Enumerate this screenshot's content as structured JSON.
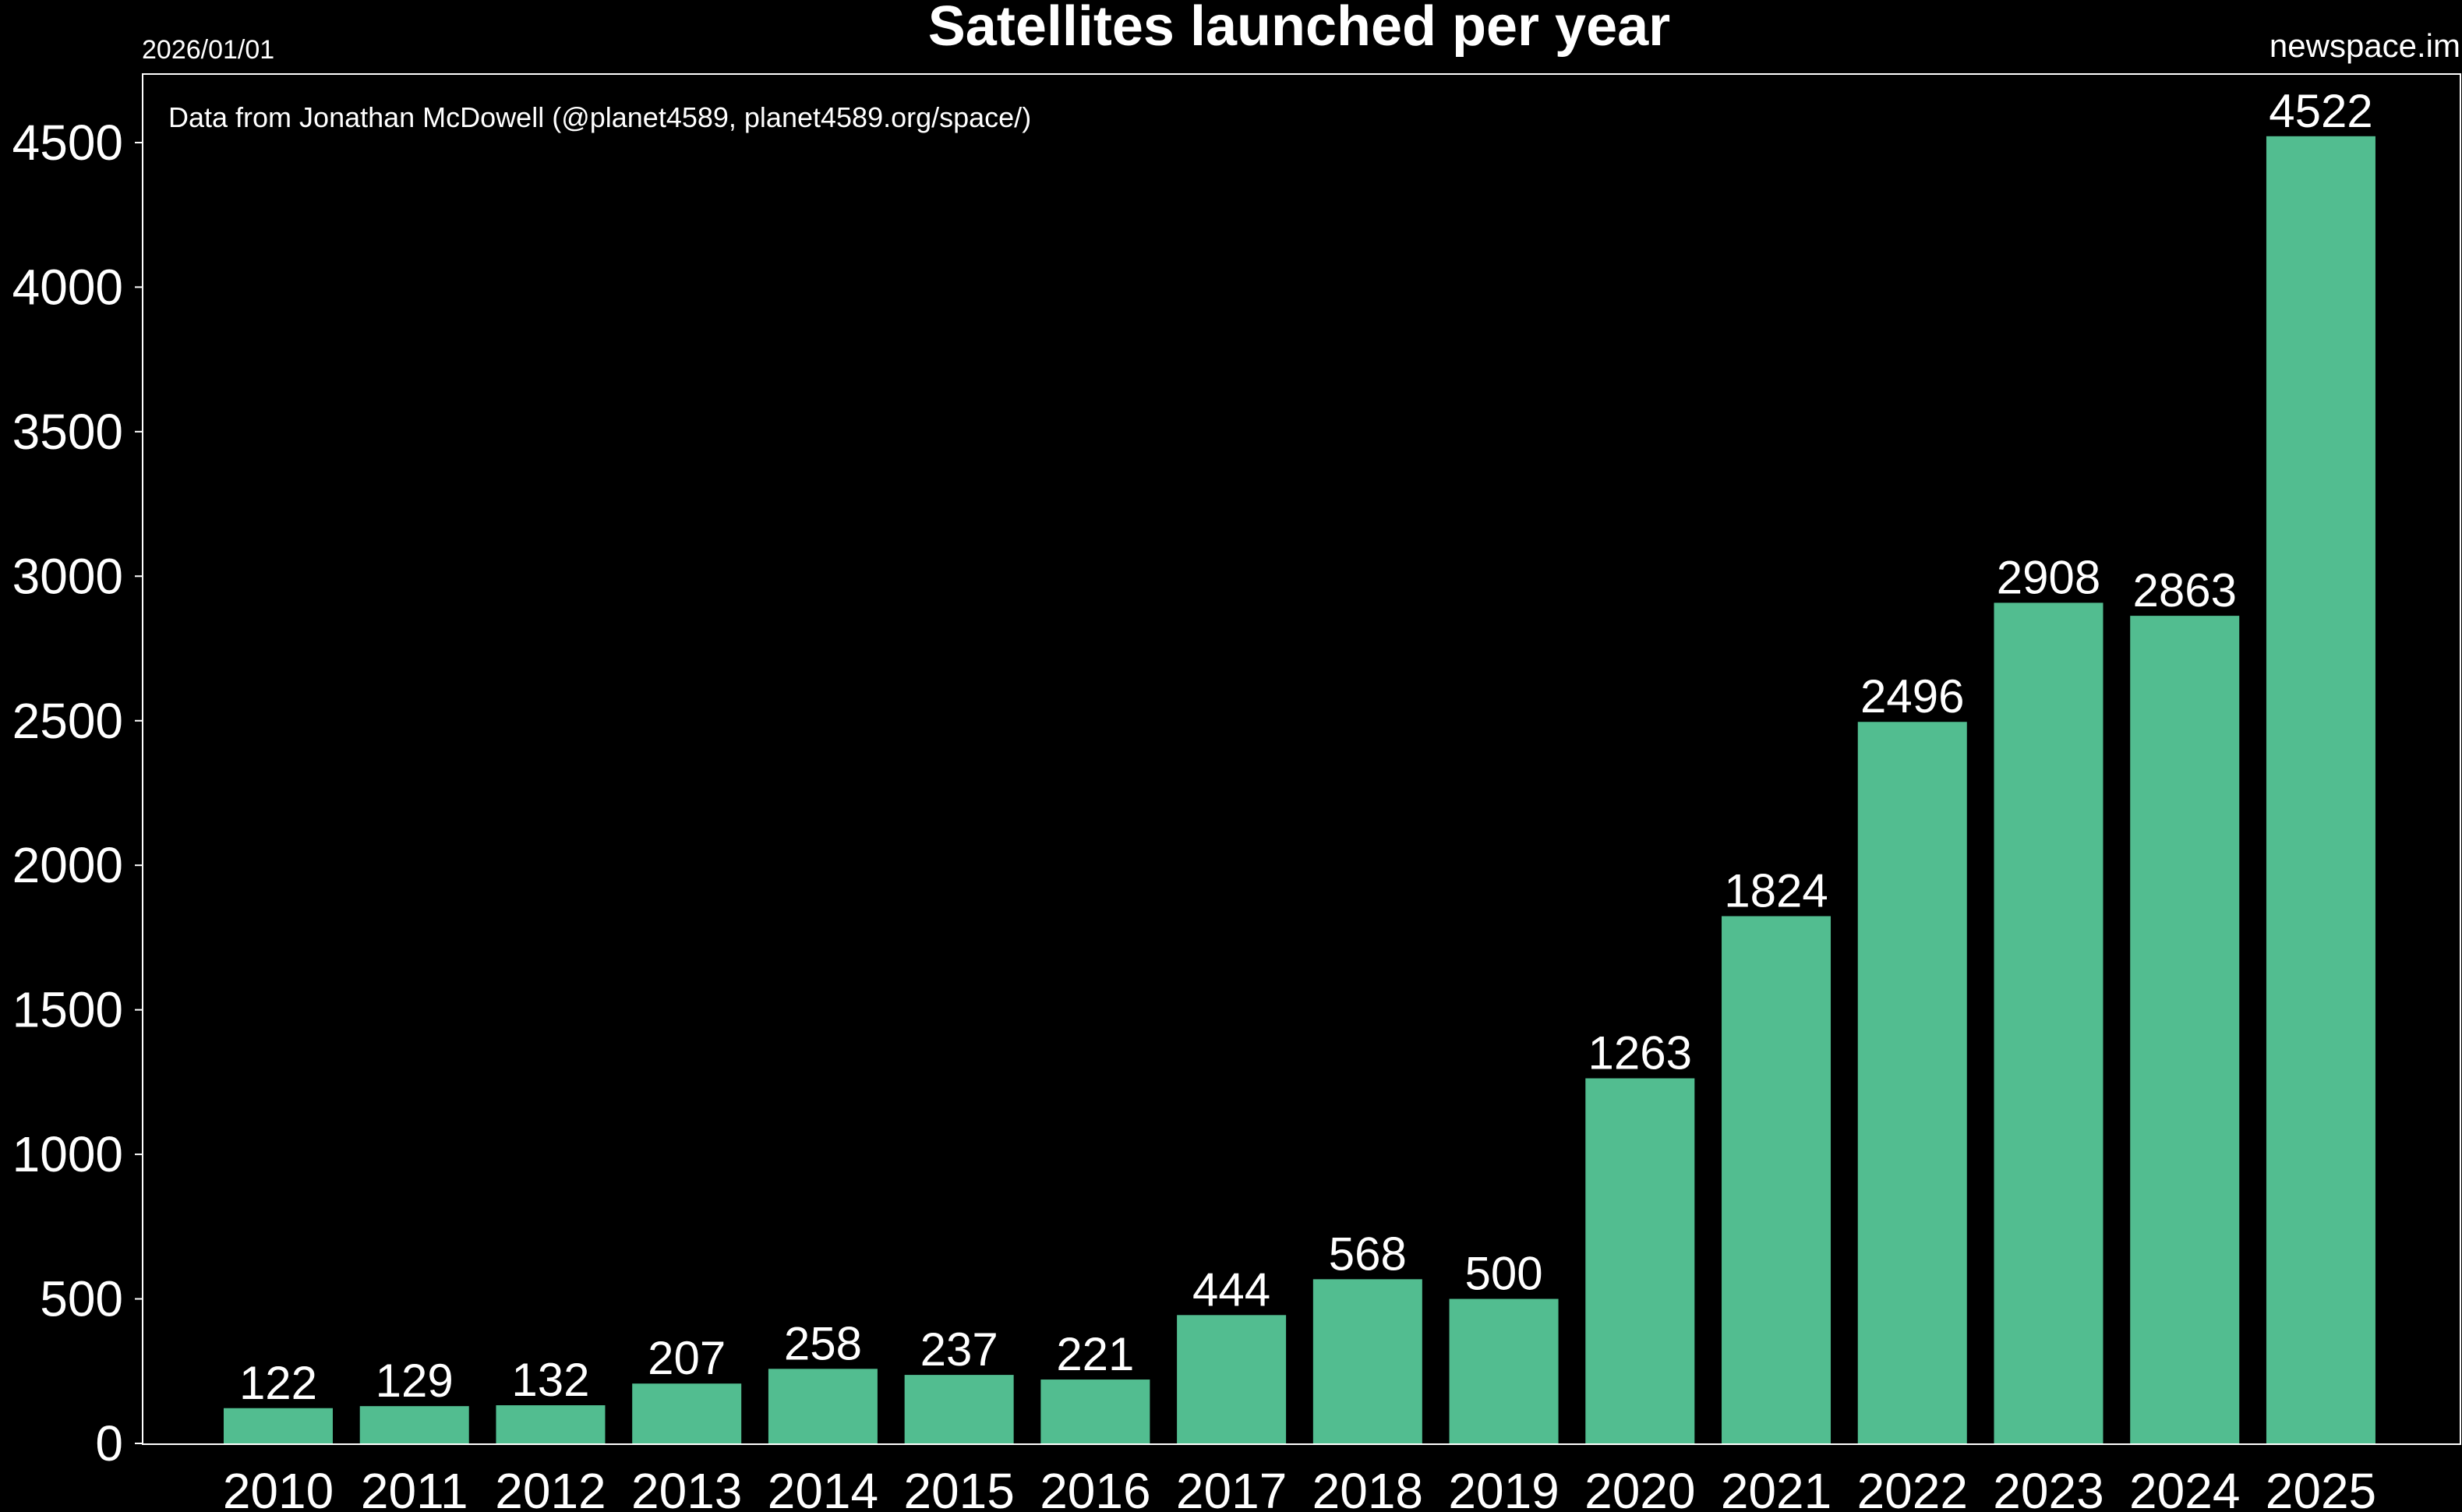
{
  "chart_data": {
    "type": "bar",
    "title": "Satellites launched per year",
    "date": "2026/01/01",
    "source_site": "newspace.im",
    "annotation": "Data from Jonathan McDowell (@planet4589, planet4589.org/space/)",
    "categories": [
      "2010",
      "2011",
      "2012",
      "2013",
      "2014",
      "2015",
      "2016",
      "2017",
      "2018",
      "2019",
      "2020",
      "2021",
      "2022",
      "2023",
      "2024",
      "2025"
    ],
    "values": [
      122,
      129,
      132,
      207,
      258,
      237,
      221,
      444,
      568,
      500,
      1263,
      1824,
      2496,
      2908,
      2863,
      4522
    ],
    "xlabel": "",
    "ylabel": "",
    "ylim": [
      0,
      4750
    ],
    "yticks": [
      0,
      500,
      1000,
      1500,
      2000,
      2500,
      3000,
      3500,
      4000,
      4500
    ],
    "ytick_labels": [
      "0",
      "500",
      "1000",
      "1500",
      "2000",
      "2500",
      "3000",
      "3500",
      "4000",
      "4500"
    ],
    "grid": false,
    "legend": "none",
    "colors": {
      "background": "#000000",
      "bar": "#52bd90",
      "text": "#ffffff",
      "frame": "#ffffff"
    }
  }
}
